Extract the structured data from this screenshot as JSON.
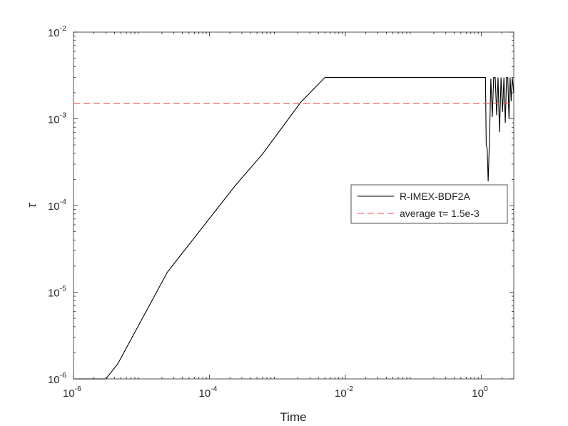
{
  "chart_data": {
    "type": "line",
    "xlabel": "Time",
    "ylabel": "τ",
    "xscale": "log",
    "yscale": "log",
    "xlim": [
      1e-06,
      3
    ],
    "ylim": [
      1e-06,
      0.01
    ],
    "x_ticks": [
      {
        "value": 1e-06,
        "base": "10",
        "exp": "-6"
      },
      {
        "value": 0.0001,
        "base": "10",
        "exp": "-4"
      },
      {
        "value": 0.01,
        "base": "10",
        "exp": "-2"
      },
      {
        "value": 1,
        "base": "10",
        "exp": "0"
      }
    ],
    "y_ticks": [
      {
        "value": 1e-06,
        "base": "10",
        "exp": "-6"
      },
      {
        "value": 1e-05,
        "base": "10",
        "exp": "-5"
      },
      {
        "value": 0.0001,
        "base": "10",
        "exp": "-4"
      },
      {
        "value": 0.001,
        "base": "10",
        "exp": "-3"
      },
      {
        "value": 0.01,
        "base": "10",
        "exp": "-2"
      }
    ],
    "grid": false,
    "legend_position": "right",
    "series": [
      {
        "name": "R-IMEX-BDF2A",
        "color": "#000000",
        "dash": "solid",
        "points": [
          [
            1e-06,
            1e-06
          ],
          [
            3e-06,
            1e-06
          ],
          [
            4.5e-06,
            1.5e-06
          ],
          [
            2.4e-05,
            1.7e-05
          ],
          [
            0.00024,
            0.00017
          ],
          [
            0.0006,
            0.00039
          ],
          [
            0.0022,
            0.00155
          ],
          [
            0.005,
            0.003
          ],
          [
            1.15,
            0.003
          ],
          [
            1.18,
            0.0005
          ],
          [
            1.22,
            0.00045
          ],
          [
            1.26,
            0.00019
          ],
          [
            1.32,
            0.0006
          ],
          [
            1.38,
            0.0029
          ],
          [
            1.45,
            0.00105
          ],
          [
            1.52,
            0.003
          ],
          [
            1.6,
            0.003
          ],
          [
            1.68,
            0.0011
          ],
          [
            1.76,
            0.003
          ],
          [
            1.85,
            0.0007
          ],
          [
            1.95,
            0.003
          ],
          [
            2.05,
            0.0012
          ],
          [
            2.15,
            0.003
          ],
          [
            2.25,
            0.0009
          ],
          [
            2.35,
            0.003
          ],
          [
            2.45,
            0.003
          ],
          [
            2.55,
            0.001
          ],
          [
            2.65,
            0.003
          ],
          [
            2.75,
            0.0016
          ],
          [
            2.85,
            0.003
          ],
          [
            3,
            0.002
          ]
        ]
      },
      {
        "name": "average τ= 1.5e-3",
        "color": "#ff4d4d",
        "dash": "dashed",
        "points": [
          [
            1e-06,
            0.0015
          ],
          [
            3,
            0.0015
          ]
        ]
      }
    ]
  }
}
